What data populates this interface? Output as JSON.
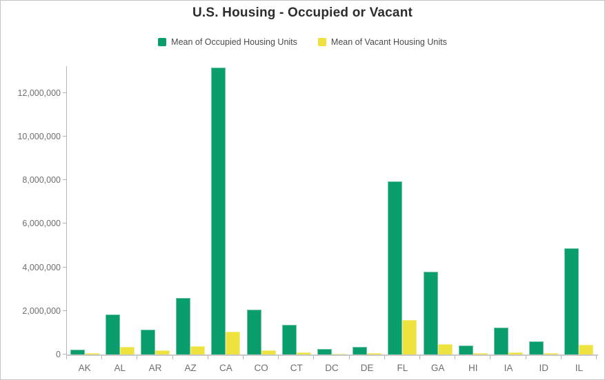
{
  "title": "U.S. Housing - Occupied or Vacant",
  "chart_data": {
    "type": "bar",
    "title": "U.S. Housing - Occupied or Vacant",
    "categories": [
      "AK",
      "AL",
      "AR",
      "AZ",
      "CA",
      "CO",
      "CT",
      "DC",
      "DE",
      "FL",
      "GA",
      "HI",
      "IA",
      "ID",
      "IL"
    ],
    "series": [
      {
        "name": "Mean of Occupied Housing Units",
        "color": "#0a9e6e",
        "edge_color": "#72c5a2",
        "values": [
          230000,
          1850000,
          1150000,
          2600000,
          13150000,
          2060000,
          1350000,
          265000,
          340000,
          7930000,
          3790000,
          420000,
          1230000,
          610000,
          4870000
        ]
      },
      {
        "name": "Mean of Vacant Housing Units",
        "color": "#ede23e",
        "edge_color": "#f3ee8a",
        "values": [
          50000,
          350000,
          175000,
          380000,
          1050000,
          200000,
          110000,
          35000,
          60000,
          1580000,
          460000,
          55000,
          95000,
          55000,
          450000
        ]
      }
    ],
    "xlabel": "",
    "ylabel": "",
    "ylim": [
      0,
      13220000
    ],
    "yticks": [
      0,
      2000000,
      4000000,
      6000000,
      8000000,
      10000000,
      12000000
    ],
    "grid": false,
    "legend_position": "top"
  },
  "colors": {
    "occupied": "#0a9e6e",
    "vacant": "#ede23e",
    "axis_line": "#b5b5b5",
    "tick": "#b0b0b0",
    "axis_text": "#6e6e6e",
    "title_text": "#2d2d2d",
    "canvas_border": "#c4c4c4"
  }
}
